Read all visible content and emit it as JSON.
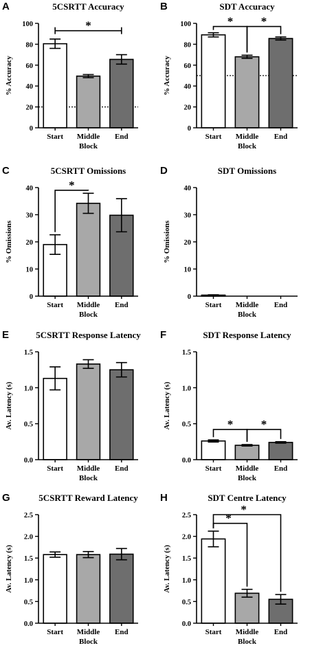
{
  "palette": {
    "start": "#ffffff",
    "middle": "#a8a8a8",
    "end": "#6e6e6e",
    "ink": "#000000"
  },
  "chart_data": [
    {
      "letter": "A",
      "type": "bar",
      "title": "5CSRTT Accuracy",
      "xlabel": "Block",
      "ylabel": "% Accuracy",
      "categories": [
        "Start",
        "Middle",
        "End"
      ],
      "values": [
        80.5,
        49.5,
        65.5
      ],
      "errors": [
        4.5,
        1.5,
        4.5
      ],
      "ylim": [
        0,
        100
      ],
      "yticks": [
        "0",
        "20",
        "40",
        "60",
        "80",
        "100"
      ],
      "chance_line": 20,
      "significance": [
        {
          "from": 0,
          "to": 2,
          "label": "*",
          "y": 93,
          "style": "bracket"
        }
      ]
    },
    {
      "letter": "B",
      "type": "bar",
      "title": "SDT Accuracy",
      "xlabel": "Block",
      "ylabel": "% Accuracy",
      "categories": [
        "Start",
        "Middle",
        "End"
      ],
      "values": [
        89,
        68,
        85.5
      ],
      "errors": [
        2,
        1.5,
        1.5
      ],
      "ylim": [
        0,
        100
      ],
      "yticks": [
        "0",
        "20",
        "40",
        "60",
        "80",
        "100"
      ],
      "chance_line": 50,
      "significance": [
        {
          "from": 0,
          "to": 1,
          "label": "*",
          "y": 97,
          "style": "drop"
        },
        {
          "from": 1,
          "to": 2,
          "label": "*",
          "y": 97,
          "style": "drop"
        }
      ]
    },
    {
      "letter": "C",
      "type": "bar",
      "title": "5CSRTT Omissions",
      "xlabel": "Block",
      "ylabel": "% Omissions",
      "categories": [
        "Start",
        "Middle",
        "End"
      ],
      "values": [
        19,
        34.2,
        29.8
      ],
      "errors": [
        3.6,
        3.7,
        6.1
      ],
      "ylim": [
        0,
        40
      ],
      "yticks": [
        "0",
        "10",
        "20",
        "30",
        "40"
      ],
      "significance": [
        {
          "from": 0,
          "to": 1,
          "label": "*",
          "y": 39,
          "style": "drop"
        }
      ]
    },
    {
      "letter": "D",
      "type": "bar",
      "title": "SDT Omissions",
      "xlabel": "Block",
      "ylabel": "% Omissions",
      "categories": [
        "Start",
        "Middle",
        "End"
      ],
      "values": [
        0.3,
        0,
        0
      ],
      "errors": [
        0.2,
        0,
        0
      ],
      "ylim": [
        0,
        40
      ],
      "yticks": [
        "0",
        "10",
        "20",
        "30",
        "40"
      ],
      "significance": []
    },
    {
      "letter": "E",
      "type": "bar",
      "title": "5CSRTT Response Latency",
      "xlabel": "Block",
      "ylabel": "Av. Latency (s)",
      "categories": [
        "Start",
        "Middle",
        "End"
      ],
      "values": [
        1.13,
        1.33,
        1.25
      ],
      "errors": [
        0.16,
        0.06,
        0.1
      ],
      "ylim": [
        0,
        1.5
      ],
      "yticks": [
        "0.0",
        "0.5",
        "1.0",
        "1.5"
      ],
      "significance": []
    },
    {
      "letter": "F",
      "type": "bar",
      "title": "SDT Response Latency",
      "xlabel": "Block",
      "ylabel": "Av. Latency (s)",
      "categories": [
        "Start",
        "Middle",
        "End"
      ],
      "values": [
        0.26,
        0.2,
        0.24
      ],
      "errors": [
        0.015,
        0.01,
        0.01
      ],
      "ylim": [
        0,
        1.5
      ],
      "yticks": [
        "0.0",
        "0.5",
        "1.0",
        "1.5"
      ],
      "significance": [
        {
          "from": 0,
          "to": 1,
          "label": "*",
          "y": 0.42,
          "style": "drop"
        },
        {
          "from": 1,
          "to": 2,
          "label": "*",
          "y": 0.42,
          "style": "drop"
        }
      ]
    },
    {
      "letter": "G",
      "type": "bar",
      "title": "5CSRTT Reward Latency",
      "xlabel": "Block",
      "ylabel": "Av. Latency (s)",
      "categories": [
        "Start",
        "Middle",
        "End"
      ],
      "values": [
        1.58,
        1.58,
        1.59
      ],
      "errors": [
        0.06,
        0.07,
        0.13
      ],
      "ylim": [
        0,
        2.5
      ],
      "yticks": [
        "0.0",
        "0.5",
        "1.0",
        "1.5",
        "2.0",
        "2.5"
      ],
      "significance": []
    },
    {
      "letter": "H",
      "type": "bar",
      "title": "SDT Centre Latency",
      "xlabel": "Block",
      "ylabel": "Av. Latency (s)",
      "categories": [
        "Start",
        "Middle",
        "End"
      ],
      "values": [
        1.94,
        0.69,
        0.55
      ],
      "errors": [
        0.18,
        0.09,
        0.11
      ],
      "ylim": [
        0,
        2.5
      ],
      "yticks": [
        "0.0",
        "0.5",
        "1.0",
        "1.5",
        "2.0",
        "2.5"
      ],
      "significance": [
        {
          "from": 0,
          "to": 2,
          "label": "*",
          "y": 2.5,
          "style": "elbow"
        },
        {
          "from": 0,
          "to": 1,
          "label": "*",
          "y": 2.3,
          "style": "elbow"
        }
      ]
    }
  ]
}
